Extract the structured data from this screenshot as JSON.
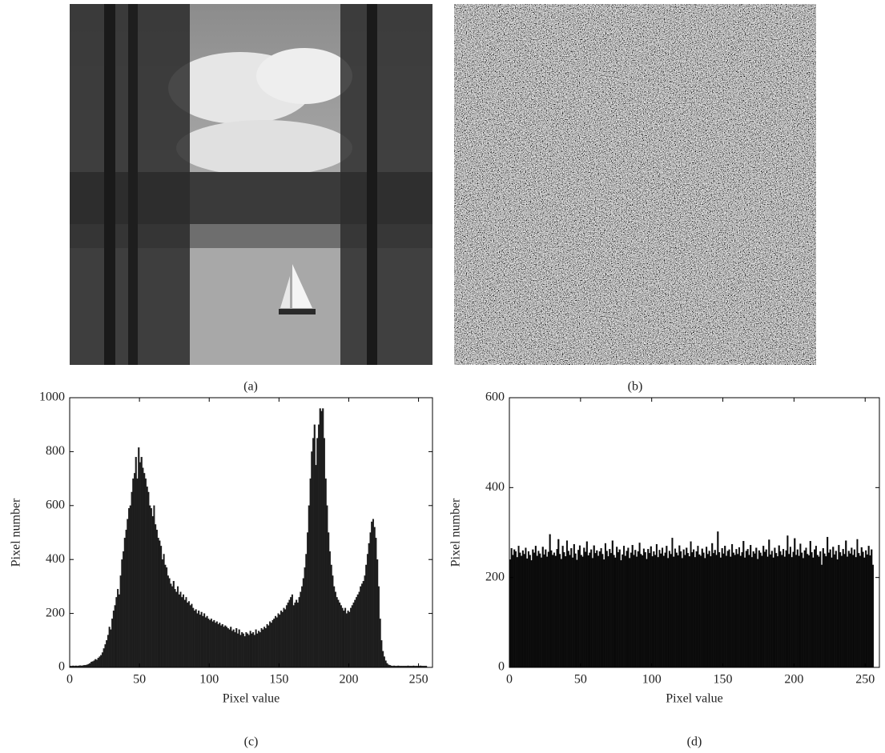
{
  "images": [
    {
      "caption": "(a)"
    },
    {
      "caption": "(b)"
    }
  ],
  "chart_data": [
    {
      "type": "histogram",
      "caption": "(c)",
      "xlabel": "Pixel value",
      "ylabel": "Pixel number",
      "color": "#1c1c1c",
      "xlim": [
        0,
        260
      ],
      "ylim": [
        0,
        1000
      ],
      "xticks": [
        0,
        50,
        100,
        150,
        200,
        250
      ],
      "yticks": [
        0,
        200,
        400,
        600,
        800,
        1000
      ],
      "bins": [
        0,
        1,
        2,
        3,
        4,
        5,
        6,
        7,
        8,
        9,
        10,
        11,
        12,
        13,
        14,
        15,
        16,
        17,
        18,
        19,
        20,
        21,
        22,
        23,
        24,
        25,
        26,
        27,
        28,
        29,
        30,
        31,
        32,
        33,
        34,
        35,
        36,
        37,
        38,
        39,
        40,
        41,
        42,
        43,
        44,
        45,
        46,
        47,
        48,
        49,
        50,
        51,
        52,
        53,
        54,
        55,
        56,
        57,
        58,
        59,
        60,
        61,
        62,
        63,
        64,
        65,
        66,
        67,
        68,
        69,
        70,
        71,
        72,
        73,
        74,
        75,
        76,
        77,
        78,
        79,
        80,
        81,
        82,
        83,
        84,
        85,
        86,
        87,
        88,
        89,
        90,
        91,
        92,
        93,
        94,
        95,
        96,
        97,
        98,
        99,
        100,
        101,
        102,
        103,
        104,
        105,
        106,
        107,
        108,
        109,
        110,
        111,
        112,
        113,
        114,
        115,
        116,
        117,
        118,
        119,
        120,
        121,
        122,
        123,
        124,
        125,
        126,
        127,
        128,
        129,
        130,
        131,
        132,
        133,
        134,
        135,
        136,
        137,
        138,
        139,
        140,
        141,
        142,
        143,
        144,
        145,
        146,
        147,
        148,
        149,
        150,
        151,
        152,
        153,
        154,
        155,
        156,
        157,
        158,
        159,
        160,
        161,
        162,
        163,
        164,
        165,
        166,
        167,
        168,
        169,
        170,
        171,
        172,
        173,
        174,
        175,
        176,
        177,
        178,
        179,
        180,
        181,
        182,
        183,
        184,
        185,
        186,
        187,
        188,
        189,
        190,
        191,
        192,
        193,
        194,
        195,
        196,
        197,
        198,
        199,
        200,
        201,
        202,
        203,
        204,
        205,
        206,
        207,
        208,
        209,
        210,
        211,
        212,
        213,
        214,
        215,
        216,
        217,
        218,
        219,
        220,
        221,
        222,
        223,
        224,
        225,
        226,
        227,
        228,
        229,
        230,
        231,
        232,
        233,
        234,
        235,
        236,
        237,
        238,
        239,
        240,
        241,
        242,
        243,
        244,
        245,
        246,
        247,
        248,
        249,
        250,
        251,
        252,
        253,
        254,
        255,
        256
      ],
      "values": [
        5,
        5,
        6,
        5,
        6,
        5,
        6,
        7,
        6,
        7,
        8,
        8,
        10,
        12,
        15,
        20,
        22,
        25,
        30,
        28,
        35,
        40,
        45,
        55,
        70,
        85,
        100,
        120,
        150,
        140,
        180,
        210,
        230,
        260,
        290,
        270,
        340,
        400,
        430,
        480,
        510,
        550,
        590,
        600,
        650,
        700,
        720,
        780,
        700,
        815,
        760,
        780,
        740,
        720,
        700,
        670,
        650,
        600,
        590,
        560,
        600,
        530,
        510,
        480,
        470,
        450,
        400,
        420,
        380,
        370,
        340,
        330,
        310,
        300,
        320,
        290,
        280,
        300,
        270,
        280,
        260,
        270,
        250,
        260,
        240,
        245,
        230,
        235,
        220,
        210,
        215,
        200,
        210,
        195,
        205,
        190,
        200,
        185,
        190,
        180,
        175,
        180,
        170,
        175,
        165,
        170,
        160,
        165,
        155,
        160,
        150,
        155,
        150,
        145,
        140,
        150,
        135,
        140,
        130,
        145,
        125,
        140,
        120,
        130,
        125,
        115,
        130,
        125,
        120,
        135,
        125,
        130,
        120,
        140,
        125,
        135,
        130,
        145,
        140,
        150,
        145,
        160,
        155,
        170,
        165,
        175,
        180,
        190,
        185,
        200,
        195,
        210,
        205,
        220,
        215,
        230,
        240,
        250,
        260,
        270,
        230,
        240,
        250,
        240,
        260,
        280,
        300,
        330,
        370,
        420,
        500,
        600,
        700,
        800,
        850,
        900,
        750,
        850,
        900,
        960,
        950,
        960,
        850,
        700,
        600,
        500,
        430,
        380,
        340,
        300,
        280,
        260,
        250,
        240,
        230,
        220,
        210,
        220,
        200,
        210,
        205,
        220,
        230,
        240,
        250,
        260,
        270,
        280,
        300,
        310,
        320,
        340,
        380,
        420,
        460,
        500,
        540,
        550,
        520,
        480,
        400,
        300,
        180,
        100,
        60,
        40,
        25,
        15,
        10,
        8,
        6,
        5,
        6,
        5,
        5,
        6,
        5,
        5,
        5,
        5,
        5,
        5,
        6,
        5,
        5,
        5,
        6,
        5,
        5,
        5,
        5,
        6,
        5,
        5,
        5,
        5
      ]
    },
    {
      "type": "histogram",
      "caption": "(d)",
      "xlabel": "Pixel value",
      "ylabel": "Pixel number",
      "color": "#0a0a0a",
      "xlim": [
        0,
        260
      ],
      "ylim": [
        0,
        600
      ],
      "xticks": [
        0,
        50,
        100,
        150,
        200,
        250
      ],
      "yticks": [
        0,
        200,
        400,
        600
      ],
      "bins": [
        0,
        1,
        2,
        3,
        4,
        5,
        6,
        7,
        8,
        9,
        10,
        11,
        12,
        13,
        14,
        15,
        16,
        17,
        18,
        19,
        20,
        21,
        22,
        23,
        24,
        25,
        26,
        27,
        28,
        29,
        30,
        31,
        32,
        33,
        34,
        35,
        36,
        37,
        38,
        39,
        40,
        41,
        42,
        43,
        44,
        45,
        46,
        47,
        48,
        49,
        50,
        51,
        52,
        53,
        54,
        55,
        56,
        57,
        58,
        59,
        60,
        61,
        62,
        63,
        64,
        65,
        66,
        67,
        68,
        69,
        70,
        71,
        72,
        73,
        74,
        75,
        76,
        77,
        78,
        79,
        80,
        81,
        82,
        83,
        84,
        85,
        86,
        87,
        88,
        89,
        90,
        91,
        92,
        93,
        94,
        95,
        96,
        97,
        98,
        99,
        100,
        101,
        102,
        103,
        104,
        105,
        106,
        107,
        108,
        109,
        110,
        111,
        112,
        113,
        114,
        115,
        116,
        117,
        118,
        119,
        120,
        121,
        122,
        123,
        124,
        125,
        126,
        127,
        128,
        129,
        130,
        131,
        132,
        133,
        134,
        135,
        136,
        137,
        138,
        139,
        140,
        141,
        142,
        143,
        144,
        145,
        146,
        147,
        148,
        149,
        150,
        151,
        152,
        153,
        154,
        155,
        156,
        157,
        158,
        159,
        160,
        161,
        162,
        163,
        164,
        165,
        166,
        167,
        168,
        169,
        170,
        171,
        172,
        173,
        174,
        175,
        176,
        177,
        178,
        179,
        180,
        181,
        182,
        183,
        184,
        185,
        186,
        187,
        188,
        189,
        190,
        191,
        192,
        193,
        194,
        195,
        196,
        197,
        198,
        199,
        200,
        201,
        202,
        203,
        204,
        205,
        206,
        207,
        208,
        209,
        210,
        211,
        212,
        213,
        214,
        215,
        216,
        217,
        218,
        219,
        220,
        221,
        222,
        223,
        224,
        225,
        226,
        227,
        228,
        229,
        230,
        231,
        232,
        233,
        234,
        235,
        236,
        237,
        238,
        239,
        240,
        241,
        242,
        243,
        244,
        245,
        246,
        247,
        248,
        249,
        250,
        251,
        252,
        253,
        254,
        255,
        256
      ],
      "values": [
        240,
        265,
        250,
        262,
        258,
        245,
        270,
        255,
        248,
        260,
        252,
        266,
        242,
        258,
        250,
        238,
        262,
        255,
        270,
        248,
        259,
        253,
        244,
        268,
        251,
        262,
        246,
        257,
        296,
        260,
        250,
        255,
        248,
        263,
        285,
        252,
        241,
        270,
        256,
        247,
        282,
        259,
        250,
        265,
        244,
        274,
        253,
        239,
        261,
        271,
        250,
        246,
        266,
        257,
        280,
        249,
        255,
        262,
        243,
        271,
        254,
        260,
        248,
        258,
        265,
        252,
        240,
        276,
        259,
        247,
        263,
        254,
        282,
        250,
        244,
        268,
        256,
        262,
        238,
        251,
        270,
        248,
        259,
        266,
        243,
        255,
        272,
        250,
        261,
        246,
        258,
        277,
        252,
        249,
        264,
        256,
        241,
        263,
        254,
        269,
        247,
        258,
        250,
        274,
        245,
        261,
        253,
        266,
        248,
        255,
        270,
        243,
        259,
        252,
        288,
        246,
        264,
        255,
        249,
        271,
        258,
        243,
        262,
        250,
        266,
        254,
        247,
        280,
        256,
        262,
        245,
        258,
        270,
        251,
        248,
        264,
        255,
        243,
        268,
        252,
        259,
        247,
        276,
        254,
        261,
        250,
        302,
        256,
        244,
        265,
        253,
        270,
        248,
        259,
        262,
        246,
        274,
        255,
        250,
        263,
        252,
        267,
        248,
        256,
        281,
        244,
        259,
        263,
        250,
        272,
        245,
        258,
        253,
        266,
        241,
        260,
        255,
        248,
        270,
        257,
        262,
        246,
        284,
        251,
        259,
        244,
        266,
        254,
        247,
        271,
        258,
        250,
        263,
        246,
        260,
        293,
        252,
        268,
        245,
        257,
        287,
        250,
        262,
        248,
        275,
        255,
        243,
        260,
        266,
        252,
        249,
        281,
        256,
        244,
        262,
        270,
        250,
        246,
        258,
        228,
        265,
        253,
        247,
        290,
        255,
        262,
        244,
        268,
        251,
        259,
        240,
        272,
        256,
        248,
        263,
        252,
        282,
        246,
        259,
        253,
        266,
        250,
        262,
        245,
        285,
        254,
        248,
        267,
        257,
        244,
        260,
        251,
        270,
        249,
        262,
        228
      ]
    }
  ]
}
